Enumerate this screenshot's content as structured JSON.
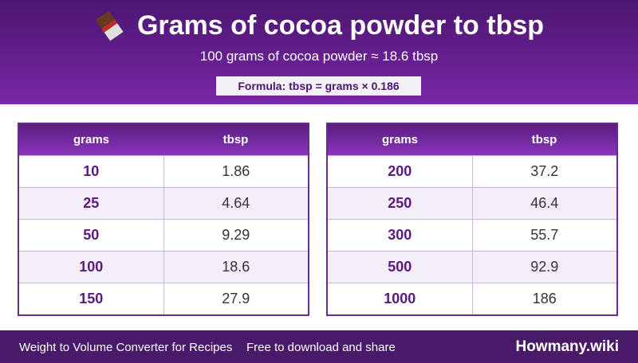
{
  "header": {
    "title": "Grams of cocoa powder to tbsp",
    "subtitle": "100 grams of cocoa powder ≈ 18.6 tbsp",
    "formula": "Formula: tbsp = grams × 0.186"
  },
  "tables": [
    {
      "columns": [
        "grams",
        "tbsp"
      ],
      "rows": [
        [
          "10",
          "1.86"
        ],
        [
          "25",
          "4.64"
        ],
        [
          "50",
          "9.29"
        ],
        [
          "100",
          "18.6"
        ],
        [
          "150",
          "27.9"
        ]
      ]
    },
    {
      "columns": [
        "grams",
        "tbsp"
      ],
      "rows": [
        [
          "200",
          "37.2"
        ],
        [
          "250",
          "46.4"
        ],
        [
          "300",
          "55.7"
        ],
        [
          "500",
          "92.9"
        ],
        [
          "1000",
          "186"
        ]
      ]
    }
  ],
  "footer": {
    "left": "Weight to Volume Converter for Recipes",
    "middle": "Free to download and share",
    "brand": "Howmany.wiki"
  }
}
